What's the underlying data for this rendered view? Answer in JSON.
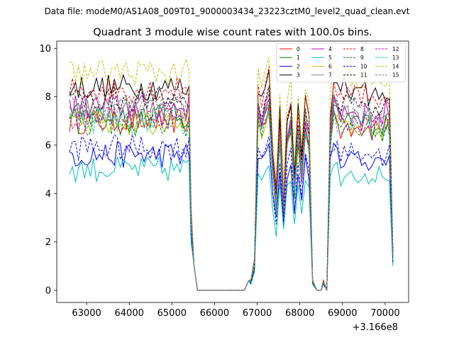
{
  "chart_data": {
    "type": "line",
    "suptitle": "Data file: modeM0/AS1A08_009T01_9000003434_23223cztM0_level2_quad_clean.evt",
    "title": "Quadrant 3 module wise count rates with 100.0s bins.",
    "xlabel": "",
    "ylabel": "",
    "x_offset_label": "+3.166e8",
    "xlim": [
      62300,
      70550
    ],
    "ylim": [
      -0.5,
      10.3
    ],
    "xticks": [
      63000,
      64000,
      65000,
      66000,
      67000,
      68000,
      69000,
      70000
    ],
    "xtick_labels": [
      "63000",
      "64000",
      "65000",
      "66000",
      "67000",
      "68000",
      "69000",
      "70000"
    ],
    "yticks": [
      0,
      2,
      4,
      6,
      8,
      10
    ],
    "ytick_labels": [
      "0",
      "2",
      "4",
      "6",
      "8",
      "10"
    ],
    "legend_position": "top-right",
    "series": [
      {
        "name": "0",
        "color": "#ff0000",
        "style": "solid",
        "base": 7.0
      },
      {
        "name": "1",
        "color": "#008000",
        "style": "solid",
        "base": 7.2
      },
      {
        "name": "2",
        "color": "#0000ff",
        "style": "solid",
        "base": 5.6
      },
      {
        "name": "3",
        "color": "#000000",
        "style": "solid",
        "base": 8.4
      },
      {
        "name": "4",
        "color": "#c000c0",
        "style": "solid",
        "base": 7.6
      },
      {
        "name": "5",
        "color": "#00bfbf",
        "style": "solid",
        "base": 5.0
      },
      {
        "name": "6",
        "color": "#bfbf00",
        "style": "solid",
        "base": 6.9
      },
      {
        "name": "7",
        "color": "#808080",
        "style": "solid",
        "base": 7.4
      },
      {
        "name": "8",
        "color": "#ff0000",
        "style": "dashed",
        "base": 8.3
      },
      {
        "name": "9",
        "color": "#008000",
        "style": "dashed",
        "base": 6.9
      },
      {
        "name": "10",
        "color": "#0000ff",
        "style": "dashed",
        "base": 5.9
      },
      {
        "name": "11",
        "color": "#000000",
        "style": "dashed",
        "base": 7.9
      },
      {
        "name": "12",
        "color": "#c000c0",
        "style": "dashed",
        "base": 7.2
      },
      {
        "name": "13",
        "color": "#00bfbf",
        "style": "dashed",
        "base": 7.0
      },
      {
        "name": "14",
        "color": "#bfbf00",
        "style": "dashed",
        "base": 9.0
      },
      {
        "name": "15",
        "color": "#808080",
        "style": "dashed",
        "base": 7.6
      }
    ],
    "time_segments": [
      {
        "start": 62600,
        "end": 65400
      },
      {
        "start": 66800,
        "end": 68300
      },
      {
        "start": 68500,
        "end": 70200
      }
    ],
    "zero_gaps": [
      {
        "start": 65600,
        "end": 66700
      },
      {
        "start": 68400,
        "end": 68400
      }
    ]
  }
}
